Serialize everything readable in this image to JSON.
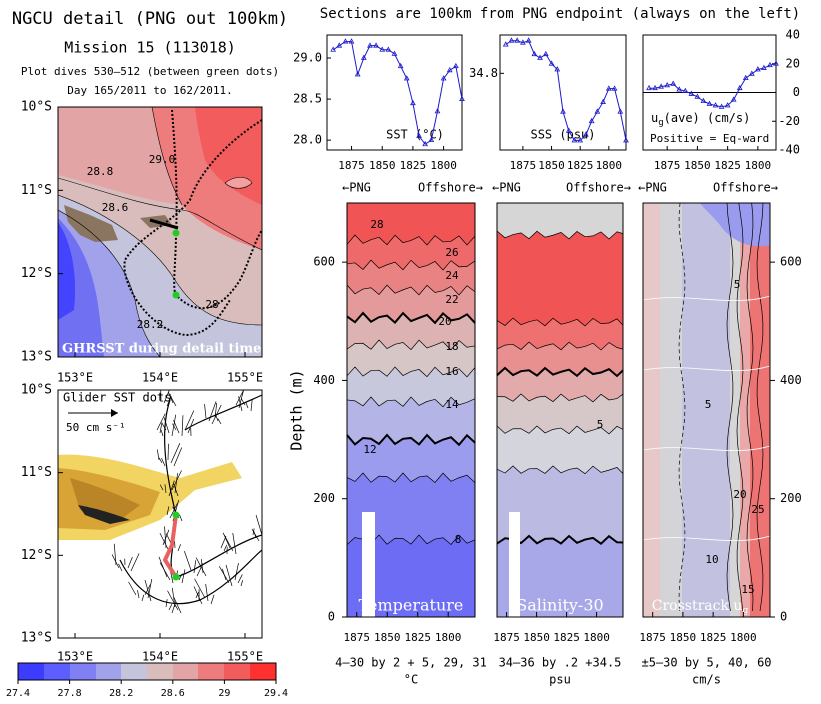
{
  "chart_data": [
    {
      "type": "map",
      "title": "NGCU detail (PNG out 100km)",
      "subtitle": "Mission 15 (113018)",
      "notes": [
        "Plot dives 530–512 (between green dots)",
        "Day 165/2011 to 162/2011."
      ],
      "caption": "GHRSST during detail time",
      "xlim": [
        152.8,
        155.2
      ],
      "ylim": [
        -13,
        -10
      ],
      "xticks": [
        {
          "value": 153,
          "label": "153°E"
        },
        {
          "value": 154,
          "label": "154°E"
        },
        {
          "value": 155,
          "label": "155°E"
        }
      ],
      "yticks": [
        {
          "value": -10,
          "label": "10°S"
        },
        {
          "value": -11,
          "label": "11°S"
        },
        {
          "value": -12,
          "label": "12°S"
        },
        {
          "value": -13,
          "label": "13°S"
        }
      ],
      "contour_labels": [
        "29.0",
        "28.8",
        "28.6",
        "28",
        "28.2"
      ],
      "colorbar": {
        "ticks": [
          27.4,
          27.8,
          28.2,
          28.6,
          29,
          29.4
        ]
      }
    },
    {
      "type": "map",
      "title": "Glider SST dots",
      "scale_label": "50 cm s⁻¹",
      "xlim": [
        152.8,
        155.2
      ],
      "ylim": [
        -13,
        -10
      ],
      "xticks": [
        {
          "value": 153,
          "label": "153°E"
        },
        {
          "value": 154,
          "label": "154°E"
        },
        {
          "value": 155,
          "label": "155°E"
        }
      ],
      "yticks": [
        {
          "value": -10,
          "label": "10°S"
        },
        {
          "value": -11,
          "label": "11°S"
        },
        {
          "value": -12,
          "label": "12°S"
        },
        {
          "value": -13,
          "label": "13°S"
        }
      ]
    },
    {
      "type": "line",
      "figure_title": "Sections are 100km from PNG endpoint (always on the left)",
      "label": "SST (°C)",
      "color": "#1a1acc",
      "x": [
        1890,
        1885,
        1880,
        1875,
        1870,
        1865,
        1860,
        1855,
        1850,
        1845,
        1840,
        1835,
        1830,
        1825,
        1820,
        1815,
        1810,
        1805,
        1800,
        1795,
        1790,
        1785
      ],
      "values": [
        29.1,
        29.15,
        29.2,
        29.2,
        28.8,
        29.0,
        29.15,
        29.15,
        29.1,
        29.1,
        29.05,
        28.9,
        28.75,
        28.45,
        28.05,
        27.95,
        28.0,
        28.35,
        28.75,
        28.85,
        28.9,
        28.5
      ],
      "xlim": [
        1895,
        1785
      ],
      "ylim": [
        27.88,
        29.28
      ],
      "xticks": [
        1875,
        1850,
        1825,
        1800
      ],
      "yticks": [
        {
          "value": 29,
          "label": "29.0"
        },
        28.5,
        {
          "value": 28,
          "label": "28.0"
        }
      ]
    },
    {
      "type": "line",
      "label": "SSS (psu)",
      "color": "#1a1acc",
      "x": [
        1890,
        1885,
        1880,
        1875,
        1870,
        1865,
        1860,
        1855,
        1850,
        1845,
        1840,
        1835,
        1830,
        1825,
        1820,
        1815,
        1810,
        1805,
        1800,
        1795,
        1790,
        1785
      ],
      "values": [
        34.95,
        34.97,
        34.97,
        34.96,
        34.97,
        34.9,
        34.88,
        34.9,
        34.85,
        34.82,
        34.6,
        34.5,
        34.45,
        34.45,
        34.48,
        34.55,
        34.6,
        34.65,
        34.72,
        34.72,
        34.6,
        34.45
      ],
      "xlim": [
        1895,
        1785
      ],
      "ylim": [
        34.4,
        35.0
      ],
      "xticks": [
        1875,
        1850,
        1825,
        1800
      ],
      "yticks": [
        34.8
      ]
    },
    {
      "type": "line",
      "label": "u",
      "label_sub": "g",
      "label_rest": "(ave) (cm/s)",
      "note": "Positive = Eq-ward",
      "color": "#1a1acc",
      "x": [
        1890,
        1885,
        1880,
        1875,
        1870,
        1865,
        1860,
        1855,
        1850,
        1845,
        1840,
        1835,
        1830,
        1825,
        1820,
        1815,
        1810,
        1805,
        1800,
        1795,
        1790,
        1785
      ],
      "values": [
        3,
        3,
        4,
        5,
        6,
        2,
        1,
        -1,
        -3,
        -6,
        -8,
        -9,
        -10,
        -9,
        -5,
        3,
        10,
        13,
        16,
        17,
        19,
        20
      ],
      "xlim": [
        1895,
        1785
      ],
      "ylim": [
        -40,
        40
      ],
      "xticks": [
        1875,
        1850,
        1825,
        1800
      ],
      "yticks": [
        40,
        20,
        0,
        -20,
        -40
      ]
    },
    {
      "type": "section",
      "title": "Temperature",
      "left_label": "←PNG",
      "right_label": "Offshore→",
      "caption": "4–30 by 2 + 5, 29, 31",
      "units": "°C",
      "ylabel": "Depth (m)",
      "xlim": [
        1883,
        1778
      ],
      "xticks": [
        1875,
        1850,
        1825,
        1800
      ],
      "ylim": [
        0,
        700
      ],
      "yticks": [
        0,
        200,
        400,
        600
      ],
      "contour_labels": [
        "28",
        "26",
        "24",
        "22",
        "20",
        "18",
        "16",
        "14",
        "12",
        "8"
      ]
    },
    {
      "type": "section",
      "title": "Salinity-30",
      "left_label": "←PNG",
      "right_label": "Offshore→",
      "caption": "34–36 by .2 +34.5",
      "units": "psu",
      "xlim": [
        1883,
        1778
      ],
      "xticks": [
        1875,
        1850,
        1825,
        1800
      ],
      "ylim": [
        0,
        700
      ],
      "contour_labels": [
        "5"
      ]
    },
    {
      "type": "section",
      "title": "Crosstrack u",
      "title_sub": "g",
      "left_label": "←PNG",
      "right_label": "Offshore→",
      "caption": "±5–30 by 5, 40, 60",
      "units": "cm/s",
      "xlim": [
        1883,
        1778
      ],
      "xticks": [
        1875,
        1850,
        1825,
        1800
      ],
      "ylim": [
        0,
        700
      ],
      "yticks": [
        0,
        200,
        400,
        600
      ],
      "contour_labels": [
        "5",
        "5",
        "10",
        "20",
        "25",
        "15"
      ]
    }
  ]
}
